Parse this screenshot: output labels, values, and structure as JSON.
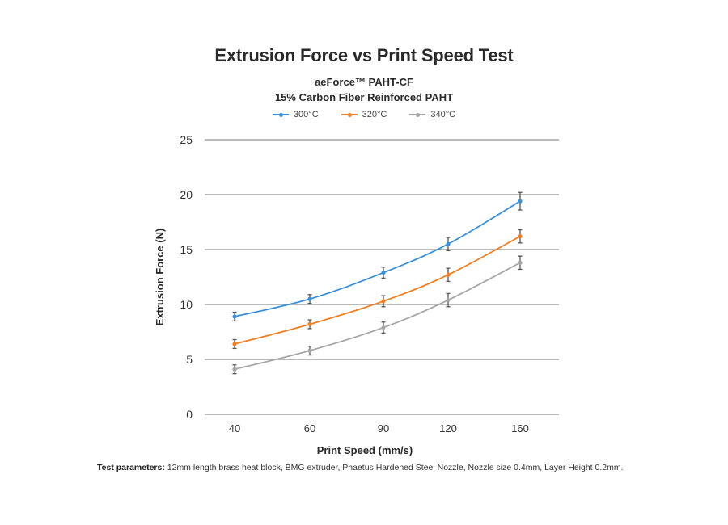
{
  "chart_data": {
    "type": "line",
    "title": "Extrusion Force vs Print Speed Test",
    "subtitle_lines": [
      "aeForce™  PAHT-CF",
      "15% Carbon Fiber Reinforced PAHT"
    ],
    "xlabel": "Print Speed (mm/s)",
    "ylabel": "Extrusion Force (N)",
    "categories": [
      "40",
      "60",
      "90",
      "120",
      "160"
    ],
    "ylim": [
      0,
      25
    ],
    "yticks": [
      0,
      5,
      10,
      15,
      20,
      25
    ],
    "grid": true,
    "legend_position": "top-center",
    "error_bars": true,
    "series": [
      {
        "name": "300°C",
        "color": "#3a8fd6",
        "values": [
          8.9,
          10.5,
          12.9,
          15.5,
          19.4
        ],
        "errors": [
          0.4,
          0.4,
          0.5,
          0.6,
          0.8
        ]
      },
      {
        "name": "320°C",
        "color": "#ef7d22",
        "values": [
          6.4,
          8.2,
          10.3,
          12.7,
          16.2
        ],
        "errors": [
          0.4,
          0.4,
          0.5,
          0.6,
          0.6
        ]
      },
      {
        "name": "340°C",
        "color": "#a6a6a6",
        "values": [
          4.1,
          5.8,
          7.9,
          10.4,
          13.8
        ],
        "errors": [
          0.4,
          0.4,
          0.5,
          0.6,
          0.6
        ]
      }
    ]
  },
  "footer": {
    "label": "Test parameters:",
    "text": " 12mm length brass heat block, BMG extruder, Phaetus Hardened Steel Nozzle, Nozzle size 0.4mm, Layer Height 0.2mm."
  },
  "colors": {
    "grid": "#a3a3a3",
    "error_bar": "#555555",
    "text": "#2a2a2a"
  }
}
